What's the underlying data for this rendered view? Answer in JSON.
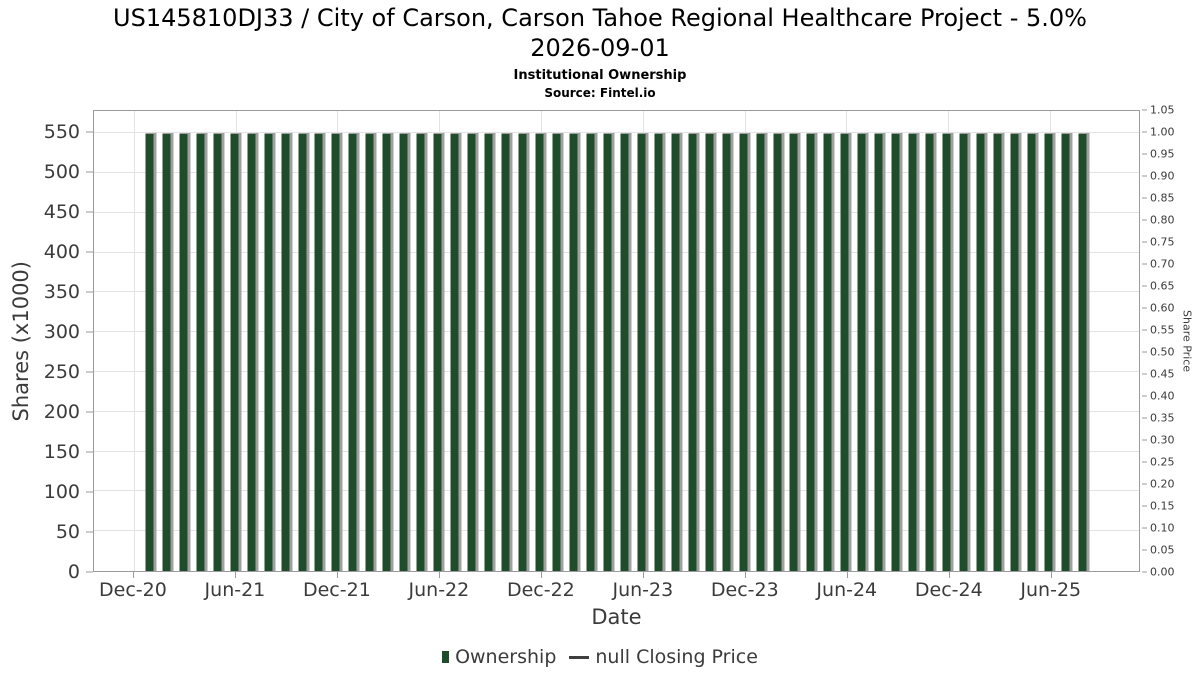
{
  "chart_data": {
    "type": "bar",
    "title_line1": "US145810DJ33 / City of Carson, Carson Tahoe Regional Healthcare Project - 5.0%",
    "title_line2": "2026-09-01",
    "subtitle": "Institutional Ownership",
    "source": "Source: Fintel.io",
    "xlabel": "Date",
    "ylabel_left": "Shares (x1000)",
    "ylabel_right": "Share Price",
    "legend_position": "bottom-center",
    "grid": true,
    "x": [
      "2021-01",
      "2021-02",
      "2021-03",
      "2021-04",
      "2021-05",
      "2021-06",
      "2021-07",
      "2021-08",
      "2021-09",
      "2021-10",
      "2021-11",
      "2021-12",
      "2022-01",
      "2022-02",
      "2022-03",
      "2022-04",
      "2022-05",
      "2022-06",
      "2022-07",
      "2022-08",
      "2022-09",
      "2022-10",
      "2022-11",
      "2022-12",
      "2023-01",
      "2023-02",
      "2023-03",
      "2023-04",
      "2023-05",
      "2023-06",
      "2023-07",
      "2023-08",
      "2023-09",
      "2023-10",
      "2023-11",
      "2023-12",
      "2024-01",
      "2024-02",
      "2024-03",
      "2024-04",
      "2024-05",
      "2024-06",
      "2024-07",
      "2024-08",
      "2024-09",
      "2024-10",
      "2024-11",
      "2024-12",
      "2025-01",
      "2025-02",
      "2025-03",
      "2025-04",
      "2025-05",
      "2025-06",
      "2025-07",
      "2025-08"
    ],
    "series": [
      {
        "name": "Ownership",
        "type": "bar",
        "color": "#1f4c2b",
        "values": [
          550,
          550,
          550,
          550,
          550,
          550,
          550,
          550,
          550,
          550,
          550,
          550,
          550,
          550,
          550,
          550,
          550,
          550,
          550,
          550,
          550,
          550,
          550,
          550,
          550,
          550,
          550,
          550,
          550,
          550,
          550,
          550,
          550,
          550,
          550,
          550,
          550,
          550,
          550,
          550,
          550,
          550,
          550,
          550,
          550,
          550,
          550,
          550,
          550,
          550,
          550,
          550,
          550,
          550,
          550,
          550
        ]
      },
      {
        "name": "null Closing Price",
        "type": "line",
        "color": "#3f3f3f",
        "values": []
      }
    ],
    "axis": {
      "x_domain_months": [
        -2.35,
        59.25
      ],
      "bar_start_offset": 1,
      "xtick_labels": [
        "Dec-20",
        "Jun-21",
        "Dec-21",
        "Jun-22",
        "Dec-22",
        "Jun-23",
        "Dec-23",
        "Jun-24",
        "Dec-24",
        "Jun-25"
      ],
      "xtick_month_offsets": [
        0,
        6,
        12,
        18,
        24,
        30,
        36,
        42,
        48,
        54
      ],
      "ylim_left": [
        0,
        578
      ],
      "yticks_left": [
        0,
        50,
        100,
        150,
        200,
        250,
        300,
        350,
        400,
        450,
        500,
        550
      ],
      "ylim_right": [
        0,
        1.0509
      ],
      "yticks_right": [
        "1.05",
        "1.00",
        "0.95",
        "0.90",
        "0.85",
        "0.80",
        "0.75",
        "0.70",
        "0.65",
        "0.60",
        "0.55",
        "0.50",
        "0.45",
        "0.40",
        "0.35",
        "0.30",
        "0.25",
        "0.20",
        "0.15",
        "0.10",
        "0.05",
        "0.00"
      ],
      "right_axis_value_per_left_unit": 550
    },
    "colors": {
      "bar": "#1f4c2b",
      "bar_shadow": "#a0a0a0",
      "grid": "#e3e3e3",
      "spine": "#9b9b9b",
      "tick_text": "#3b3b3b",
      "title_text": "#000000",
      "background": "#ffffff"
    }
  }
}
